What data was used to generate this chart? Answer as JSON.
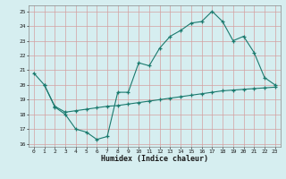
{
  "xlabel": "Humidex (Indice chaleur)",
  "bg_color": "#d6eef0",
  "grid_color": "#c8e0e4",
  "line_color": "#1a7a6e",
  "xlim": [
    -0.5,
    23.5
  ],
  "ylim": [
    15.8,
    25.4
  ],
  "xticks": [
    0,
    1,
    2,
    3,
    4,
    5,
    6,
    7,
    8,
    9,
    10,
    11,
    12,
    13,
    14,
    15,
    16,
    17,
    18,
    19,
    20,
    21,
    22,
    23
  ],
  "yticks": [
    16,
    17,
    18,
    19,
    20,
    21,
    22,
    23,
    24,
    25
  ],
  "line1_x": [
    0,
    1,
    2,
    3,
    4,
    5,
    6,
    7,
    8,
    9,
    10,
    11,
    12,
    13,
    14,
    15,
    16,
    17,
    18,
    19,
    20,
    21,
    22,
    23
  ],
  "line1_y": [
    20.8,
    20.0,
    18.5,
    18.0,
    17.0,
    16.8,
    16.3,
    16.5,
    19.5,
    19.5,
    21.5,
    21.3,
    22.5,
    23.3,
    23.7,
    24.2,
    24.3,
    25.0,
    24.3,
    23.0,
    23.3,
    22.2,
    20.5,
    20.0
  ],
  "line2_x": [
    1,
    2,
    3,
    4,
    5,
    6,
    7,
    8,
    9,
    10,
    11,
    12,
    13,
    14,
    15,
    16,
    17,
    18,
    19,
    20,
    21,
    22,
    23
  ],
  "line2_y": [
    20.0,
    18.55,
    18.15,
    18.25,
    18.35,
    18.45,
    18.55,
    18.6,
    18.7,
    18.8,
    18.9,
    19.0,
    19.1,
    19.2,
    19.3,
    19.4,
    19.5,
    19.6,
    19.65,
    19.7,
    19.75,
    19.8,
    19.85
  ]
}
